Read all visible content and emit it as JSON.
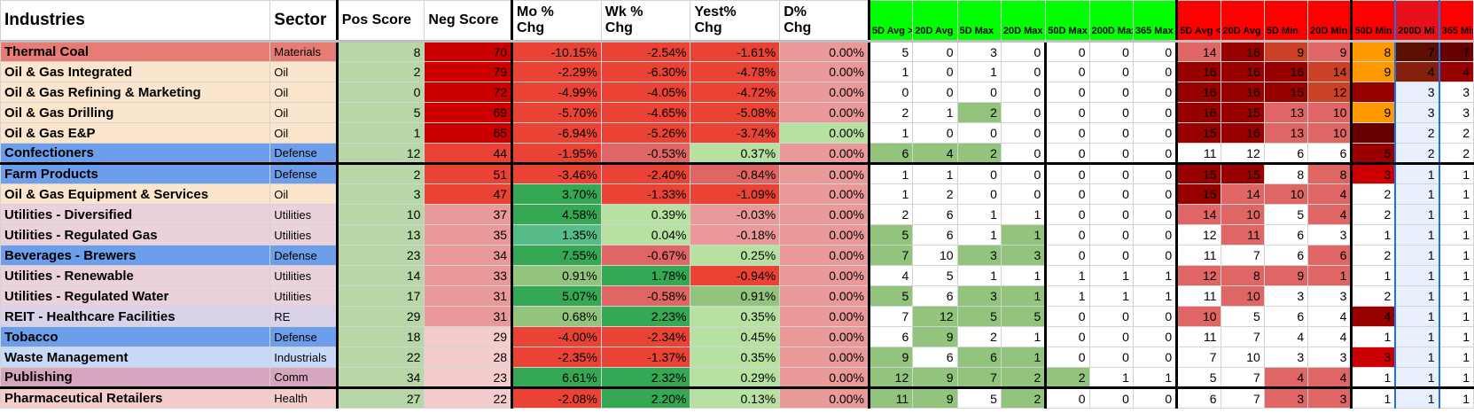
{
  "headers": [
    {
      "label": "Industries",
      "cls": "big",
      "bg": "#ffffff"
    },
    {
      "label": "Sector",
      "cls": "big",
      "bg": "#ffffff"
    },
    {
      "label": "Pos Score",
      "cls": "",
      "bg": "#ffffff"
    },
    {
      "label": "Neg Score",
      "cls": "",
      "bg": "#ffffff"
    },
    {
      "label": "Mo %\nChg",
      "cls": "",
      "bg": "#ffffff"
    },
    {
      "label": "Wk %\nChg",
      "cls": "",
      "bg": "#ffffff"
    },
    {
      "label": "Yest%\nChg",
      "cls": "",
      "bg": "#ffffff"
    },
    {
      "label": "D%\nChg",
      "cls": "",
      "bg": "#ffffff"
    },
    {
      "label": "5D Avg > 20D Avg",
      "cls": "small",
      "bg": "#00ff00"
    },
    {
      "label": "20D Avg",
      "cls": "small",
      "bg": "#00ff00"
    },
    {
      "label": "5D Max",
      "cls": "small",
      "bg": "#00ff00"
    },
    {
      "label": "20D Max",
      "cls": "small",
      "bg": "#00ff00"
    },
    {
      "label": "50D Max",
      "cls": "small",
      "bg": "#00ff00"
    },
    {
      "label": "200D Max",
      "cls": "small",
      "bg": "#00ff00"
    },
    {
      "label": "365 Max",
      "cls": "small",
      "bg": "#00ff00"
    },
    {
      "label": "5D Avg < 20D Avg",
      "cls": "small",
      "bg": "#ff0000"
    },
    {
      "label": "20D Avg",
      "cls": "small",
      "bg": "#ff0000"
    },
    {
      "label": "5D Min",
      "cls": "small",
      "bg": "#ff0000"
    },
    {
      "label": "20D Min",
      "cls": "small",
      "bg": "#ff0000"
    },
    {
      "label": "50D Min",
      "cls": "small",
      "bg": "#ff0000"
    },
    {
      "label": "200D Mi",
      "cls": "small",
      "bg": "#e8101a"
    },
    {
      "label": "365 Min",
      "cls": "small",
      "bg": "#ff0000"
    }
  ],
  "colors": {
    "sector_bg": {
      "Materials": "#e67c73",
      "Oil": "#fce5cd",
      "Defense": "#6d9eeb",
      "Utilities": "#ead1dc",
      "RE": "#d9d2e9",
      "Industrials": "#c9daf8",
      "Comm": "#d5a6bd",
      "Health": "#f4cccc"
    },
    "pos_bg": "#b7d7a8",
    "zero_pct_bg": "#b7e1a1",
    "selection": "#1a73e8"
  },
  "rows": [
    {
      "industry": "Thermal Coal",
      "sector": "Materials",
      "pos": "8",
      "neg": "70",
      "mo": "-10.15%",
      "wk": "-2.54%",
      "yest": "-1.61%",
      "d": "0.00%",
      "g": [
        "5",
        "0",
        "3",
        "0",
        "0",
        "0",
        "0"
      ],
      "r": [
        "14",
        "16",
        "9",
        "9",
        "8",
        "7",
        "7"
      ],
      "neg_bg": "#cc0000",
      "mo_bg": "#ea4335",
      "wk_bg": "#ea4335",
      "yest_bg": "#ea4335",
      "d_bg": "#ea9999",
      "g_bg": [
        "#ffffff",
        "#ffffff",
        "#ffffff",
        "#ffffff",
        "#ffffff",
        "#ffffff",
        "#ffffff"
      ],
      "r_bg": [
        "#e06666",
        "#990000",
        "#cc4125",
        "#e06666",
        "#ff9900",
        "#5b0f00",
        "#660000"
      ]
    },
    {
      "industry": "Oil & Gas Integrated",
      "sector": "Oil",
      "pos": "2",
      "neg": "79",
      "mo": "-2.29%",
      "wk": "-6.30%",
      "yest": "-4.78%",
      "d": "0.00%",
      "g": [
        "1",
        "0",
        "1",
        "0",
        "0",
        "0",
        "0"
      ],
      "r": [
        "16",
        "16",
        "16",
        "14",
        "9",
        "4",
        "4"
      ],
      "neg_bg": "#cc0000",
      "mo_bg": "#ea4335",
      "wk_bg": "#ea4335",
      "yest_bg": "#ea4335",
      "d_bg": "#ea9999",
      "g_bg": [
        "#ffffff",
        "#ffffff",
        "#ffffff",
        "#ffffff",
        "#ffffff",
        "#ffffff",
        "#ffffff"
      ],
      "r_bg": [
        "#990000",
        "#990000",
        "#990000",
        "#cc4125",
        "#ff9900",
        "#85200c",
        "#990000"
      ]
    },
    {
      "industry": "Oil & Gas Refining & Marketing",
      "sector": "Oil",
      "pos": "0",
      "neg": "72",
      "mo": "-4.99%",
      "wk": "-4.05%",
      "yest": "-4.72%",
      "d": "0.00%",
      "g": [
        "0",
        "0",
        "0",
        "0",
        "0",
        "0",
        "0"
      ],
      "r": [
        "16",
        "16",
        "15",
        "12",
        "",
        "3",
        "3"
      ],
      "neg_bg": "#cc0000",
      "mo_bg": "#ea4335",
      "wk_bg": "#ea4335",
      "yest_bg": "#ea4335",
      "d_bg": "#ea9999",
      "g_bg": [
        "#ffffff",
        "#ffffff",
        "#ffffff",
        "#ffffff",
        "#ffffff",
        "#ffffff",
        "#ffffff"
      ],
      "r_bg": [
        "#990000",
        "#990000",
        "#990000",
        "#cc4125",
        "#990000",
        "#e8f0fe",
        "#ffffff"
      ]
    },
    {
      "industry": "Oil & Gas Drilling",
      "sector": "Oil",
      "pos": "5",
      "neg": "69",
      "mo": "-5.70%",
      "wk": "-4.65%",
      "yest": "-5.08%",
      "d": "0.00%",
      "g": [
        "2",
        "1",
        "2",
        "0",
        "0",
        "0",
        "0"
      ],
      "r": [
        "16",
        "15",
        "13",
        "10",
        "9",
        "3",
        "3"
      ],
      "neg_bg": "#cc0000",
      "mo_bg": "#ea4335",
      "wk_bg": "#ea4335",
      "yest_bg": "#ea4335",
      "d_bg": "#ea9999",
      "g_bg": [
        "#ffffff",
        "#ffffff",
        "#93c47d",
        "#ffffff",
        "#ffffff",
        "#ffffff",
        "#ffffff"
      ],
      "r_bg": [
        "#990000",
        "#990000",
        "#e06666",
        "#e06666",
        "#ff9900",
        "#e8f0fe",
        "#ffffff"
      ]
    },
    {
      "industry": "Oil & Gas E&P",
      "sector": "Oil",
      "pos": "1",
      "neg": "65",
      "mo": "-6.94%",
      "wk": "-5.26%",
      "yest": "-3.74%",
      "d": "0.00%",
      "g": [
        "1",
        "0",
        "0",
        "0",
        "0",
        "0",
        "0"
      ],
      "r": [
        "15",
        "16",
        "13",
        "10",
        "",
        "2",
        "2"
      ],
      "neg_bg": "#cc0000",
      "mo_bg": "#ea4335",
      "wk_bg": "#ea4335",
      "yest_bg": "#ea4335",
      "d_bg": "#b7e1a1",
      "g_bg": [
        "#ffffff",
        "#ffffff",
        "#ffffff",
        "#ffffff",
        "#ffffff",
        "#ffffff",
        "#ffffff"
      ],
      "r_bg": [
        "#990000",
        "#990000",
        "#e06666",
        "#e06666",
        "#660000",
        "#e8f0fe",
        "#ffffff"
      ]
    },
    {
      "industry": "Confectioners",
      "sector": "Defense",
      "pos": "12",
      "neg": "44",
      "mo": "-1.95%",
      "wk": "-0.53%",
      "yest": "0.37%",
      "d": "0.00%",
      "g": [
        "6",
        "4",
        "2",
        "0",
        "0",
        "0",
        "0"
      ],
      "r": [
        "11",
        "12",
        "6",
        "6",
        "5",
        "2",
        "2"
      ],
      "neg_bg": "#ea4335",
      "mo_bg": "#ea4335",
      "wk_bg": "#e06666",
      "yest_bg": "#b7e1a1",
      "d_bg": "#ea9999",
      "g_bg": [
        "#93c47d",
        "#93c47d",
        "#93c47d",
        "#ffffff",
        "#ffffff",
        "#ffffff",
        "#ffffff"
      ],
      "r_bg": [
        "#ffffff",
        "#ffffff",
        "#ffffff",
        "#ffffff",
        "#990000",
        "#e8f0fe",
        "#ffffff"
      ]
    },
    {
      "industry": "Farm Products",
      "sector": "Defense",
      "pos": "2",
      "neg": "51",
      "mo": "-3.46%",
      "wk": "-2.40%",
      "yest": "-0.84%",
      "d": "0.00%",
      "g": [
        "1",
        "1",
        "0",
        "0",
        "0",
        "0",
        "0"
      ],
      "r": [
        "15",
        "15",
        "8",
        "8",
        "3",
        "1",
        "1"
      ],
      "neg_bg": "#ea4335",
      "mo_bg": "#ea4335",
      "wk_bg": "#ea4335",
      "yest_bg": "#e06666",
      "d_bg": "#ea9999",
      "g_bg": [
        "#ffffff",
        "#ffffff",
        "#ffffff",
        "#ffffff",
        "#ffffff",
        "#ffffff",
        "#ffffff"
      ],
      "r_bg": [
        "#990000",
        "#990000",
        "#ffffff",
        "#e06666",
        "#cc0000",
        "#e8f0fe",
        "#ffffff"
      ]
    },
    {
      "industry": "Oil & Gas Equipment & Services",
      "sector": "Oil",
      "pos": "3",
      "neg": "47",
      "mo": "3.70%",
      "wk": "-1.33%",
      "yest": "-1.09%",
      "d": "0.00%",
      "g": [
        "1",
        "2",
        "0",
        "0",
        "0",
        "0",
        "0"
      ],
      "r": [
        "15",
        "14",
        "10",
        "4",
        "2",
        "1",
        "1"
      ],
      "neg_bg": "#ea4335",
      "mo_bg": "#34a853",
      "wk_bg": "#ea4335",
      "yest_bg": "#ea4335",
      "d_bg": "#ea9999",
      "g_bg": [
        "#ffffff",
        "#ffffff",
        "#ffffff",
        "#ffffff",
        "#ffffff",
        "#ffffff",
        "#ffffff"
      ],
      "r_bg": [
        "#990000",
        "#e06666",
        "#e06666",
        "#e06666",
        "#ffffff",
        "#e8f0fe",
        "#ffffff"
      ]
    },
    {
      "industry": "Utilities - Diversified",
      "sector": "Utilities",
      "pos": "10",
      "neg": "37",
      "mo": "4.58%",
      "wk": "0.39%",
      "yest": "-0.03%",
      "d": "0.00%",
      "g": [
        "2",
        "6",
        "1",
        "1",
        "0",
        "0",
        "0"
      ],
      "r": [
        "14",
        "10",
        "5",
        "4",
        "2",
        "1",
        "1"
      ],
      "neg_bg": "#ea9999",
      "mo_bg": "#34a853",
      "wk_bg": "#b7e1a1",
      "yest_bg": "#ea9999",
      "d_bg": "#ea9999",
      "g_bg": [
        "#ffffff",
        "#ffffff",
        "#ffffff",
        "#ffffff",
        "#ffffff",
        "#ffffff",
        "#ffffff"
      ],
      "r_bg": [
        "#e06666",
        "#e06666",
        "#ffffff",
        "#e06666",
        "#ffffff",
        "#e8f0fe",
        "#ffffff"
      ]
    },
    {
      "industry": "Utilities - Regulated Gas",
      "sector": "Utilities",
      "pos": "13",
      "neg": "35",
      "mo": "1.35%",
      "wk": "0.04%",
      "yest": "-0.18%",
      "d": "0.00%",
      "g": [
        "5",
        "6",
        "1",
        "1",
        "0",
        "0",
        "0"
      ],
      "r": [
        "12",
        "11",
        "6",
        "3",
        "1",
        "1",
        "1"
      ],
      "neg_bg": "#ea9999",
      "mo_bg": "#57bb8a",
      "wk_bg": "#b7e1a1",
      "yest_bg": "#ea9999",
      "d_bg": "#ea9999",
      "g_bg": [
        "#93c47d",
        "#ffffff",
        "#ffffff",
        "#93c47d",
        "#ffffff",
        "#ffffff",
        "#ffffff"
      ],
      "r_bg": [
        "#ffffff",
        "#e06666",
        "#ffffff",
        "#ffffff",
        "#ffffff",
        "#e8f0fe",
        "#ffffff"
      ]
    },
    {
      "industry": "Beverages - Brewers",
      "sector": "Defense",
      "pos": "23",
      "neg": "34",
      "mo": "7.55%",
      "wk": "-0.67%",
      "yest": "0.25%",
      "d": "0.00%",
      "g": [
        "7",
        "10",
        "3",
        "3",
        "0",
        "0",
        "0"
      ],
      "r": [
        "11",
        "7",
        "6",
        "6",
        "2",
        "1",
        "1"
      ],
      "neg_bg": "#ea9999",
      "mo_bg": "#34a853",
      "wk_bg": "#e06666",
      "yest_bg": "#b7e1a1",
      "d_bg": "#ea9999",
      "g_bg": [
        "#93c47d",
        "#ffffff",
        "#93c47d",
        "#93c47d",
        "#ffffff",
        "#ffffff",
        "#ffffff"
      ],
      "r_bg": [
        "#ffffff",
        "#ffffff",
        "#ffffff",
        "#e06666",
        "#ffffff",
        "#e8f0fe",
        "#ffffff"
      ]
    },
    {
      "industry": "Utilities - Renewable",
      "sector": "Utilities",
      "pos": "14",
      "neg": "33",
      "mo": "0.91%",
      "wk": "1.78%",
      "yest": "-0.94%",
      "d": "0.00%",
      "g": [
        "4",
        "5",
        "1",
        "1",
        "1",
        "1",
        "1"
      ],
      "r": [
        "12",
        "8",
        "9",
        "1",
        "1",
        "1",
        "1"
      ],
      "neg_bg": "#ea9999",
      "mo_bg": "#93c47d",
      "wk_bg": "#34a853",
      "yest_bg": "#ea4335",
      "d_bg": "#ea9999",
      "g_bg": [
        "#ffffff",
        "#ffffff",
        "#ffffff",
        "#ffffff",
        "#ffffff",
        "#ffffff",
        "#ffffff"
      ],
      "r_bg": [
        "#e06666",
        "#e06666",
        "#e06666",
        "#e06666",
        "#ffffff",
        "#e8f0fe",
        "#ffffff"
      ]
    },
    {
      "industry": "Utilities - Regulated Water",
      "sector": "Utilities",
      "pos": "17",
      "neg": "31",
      "mo": "5.07%",
      "wk": "-0.58%",
      "yest": "0.91%",
      "d": "0.00%",
      "g": [
        "5",
        "6",
        "3",
        "1",
        "1",
        "1",
        "1"
      ],
      "r": [
        "11",
        "10",
        "3",
        "3",
        "2",
        "1",
        "1"
      ],
      "neg_bg": "#ea9999",
      "mo_bg": "#34a853",
      "wk_bg": "#e06666",
      "yest_bg": "#93c47d",
      "d_bg": "#ea9999",
      "g_bg": [
        "#93c47d",
        "#ffffff",
        "#93c47d",
        "#93c47d",
        "#ffffff",
        "#ffffff",
        "#ffffff"
      ],
      "r_bg": [
        "#ffffff",
        "#e06666",
        "#ffffff",
        "#ffffff",
        "#ffffff",
        "#e8f0fe",
        "#ffffff"
      ]
    },
    {
      "industry": "REIT - Healthcare Facilities",
      "sector": "RE",
      "pos": "29",
      "neg": "31",
      "mo": "0.68%",
      "wk": "2.23%",
      "yest": "0.35%",
      "d": "0.00%",
      "g": [
        "7",
        "12",
        "5",
        "5",
        "0",
        "0",
        "0"
      ],
      "r": [
        "10",
        "5",
        "6",
        "4",
        "4",
        "1",
        "1"
      ],
      "neg_bg": "#ea9999",
      "mo_bg": "#93c47d",
      "wk_bg": "#34a853",
      "yest_bg": "#b7e1a1",
      "d_bg": "#ea9999",
      "g_bg": [
        "#ffffff",
        "#93c47d",
        "#93c47d",
        "#93c47d",
        "#ffffff",
        "#ffffff",
        "#ffffff"
      ],
      "r_bg": [
        "#e06666",
        "#ffffff",
        "#ffffff",
        "#ffffff",
        "#990000",
        "#e8f0fe",
        "#ffffff"
      ]
    },
    {
      "industry": "Tobacco",
      "sector": "Defense",
      "pos": "18",
      "neg": "29",
      "mo": "-4.00%",
      "wk": "-2.34%",
      "yest": "0.45%",
      "d": "0.00%",
      "g": [
        "6",
        "9",
        "2",
        "1",
        "0",
        "0",
        "0"
      ],
      "r": [
        "11",
        "7",
        "4",
        "4",
        "1",
        "1",
        "1"
      ],
      "neg_bg": "#f4cccc",
      "mo_bg": "#ea4335",
      "wk_bg": "#ea4335",
      "yest_bg": "#b7e1a1",
      "d_bg": "#ea9999",
      "g_bg": [
        "#ffffff",
        "#93c47d",
        "#ffffff",
        "#ffffff",
        "#ffffff",
        "#ffffff",
        "#ffffff"
      ],
      "r_bg": [
        "#ffffff",
        "#ffffff",
        "#ffffff",
        "#ffffff",
        "#ffffff",
        "#e8f0fe",
        "#ffffff"
      ]
    },
    {
      "industry": "Waste Management",
      "sector": "Industrials",
      "pos": "22",
      "neg": "28",
      "mo": "-2.35%",
      "wk": "-1.37%",
      "yest": "0.35%",
      "d": "0.00%",
      "g": [
        "9",
        "6",
        "6",
        "1",
        "0",
        "0",
        "0"
      ],
      "r": [
        "7",
        "10",
        "3",
        "3",
        "3",
        "1",
        "1"
      ],
      "neg_bg": "#f4cccc",
      "mo_bg": "#ea4335",
      "wk_bg": "#ea4335",
      "yest_bg": "#b7e1a1",
      "d_bg": "#ea9999",
      "g_bg": [
        "#93c47d",
        "#ffffff",
        "#93c47d",
        "#93c47d",
        "#ffffff",
        "#ffffff",
        "#ffffff"
      ],
      "r_bg": [
        "#ffffff",
        "#ffffff",
        "#ffffff",
        "#ffffff",
        "#cc0000",
        "#e8f0fe",
        "#ffffff"
      ]
    },
    {
      "industry": "Publishing",
      "sector": "Comm",
      "pos": "34",
      "neg": "23",
      "mo": "6.61%",
      "wk": "2.32%",
      "yest": "0.29%",
      "d": "0.00%",
      "g": [
        "12",
        "9",
        "7",
        "2",
        "2",
        "1",
        "1"
      ],
      "r": [
        "5",
        "7",
        "4",
        "4",
        "1",
        "1",
        "1"
      ],
      "neg_bg": "#f4cccc",
      "mo_bg": "#34a853",
      "wk_bg": "#34a853",
      "yest_bg": "#b7e1a1",
      "d_bg": "#ea9999",
      "g_bg": [
        "#93c47d",
        "#93c47d",
        "#93c47d",
        "#93c47d",
        "#93c47d",
        "#ffffff",
        "#ffffff"
      ],
      "r_bg": [
        "#ffffff",
        "#ffffff",
        "#e06666",
        "#e06666",
        "#ffffff",
        "#e8f0fe",
        "#ffffff"
      ]
    },
    {
      "industry": "Pharmaceutical Retailers",
      "sector": "Health",
      "pos": "27",
      "neg": "22",
      "mo": "-2.08%",
      "wk": "2.20%",
      "yest": "0.13%",
      "d": "0.00%",
      "g": [
        "11",
        "9",
        "5",
        "2",
        "0",
        "0",
        "0"
      ],
      "r": [
        "6",
        "7",
        "3",
        "3",
        "1",
        "1",
        "1"
      ],
      "neg_bg": "#f4cccc",
      "mo_bg": "#ea4335",
      "wk_bg": "#34a853",
      "yest_bg": "#b7e1a1",
      "d_bg": "#ea9999",
      "g_bg": [
        "#93c47d",
        "#93c47d",
        "#ffffff",
        "#93c47d",
        "#ffffff",
        "#ffffff",
        "#ffffff"
      ],
      "r_bg": [
        "#ffffff",
        "#ffffff",
        "#e06666",
        "#e06666",
        "#ffffff",
        "#e8f0fe",
        "#ffffff"
      ]
    }
  ]
}
